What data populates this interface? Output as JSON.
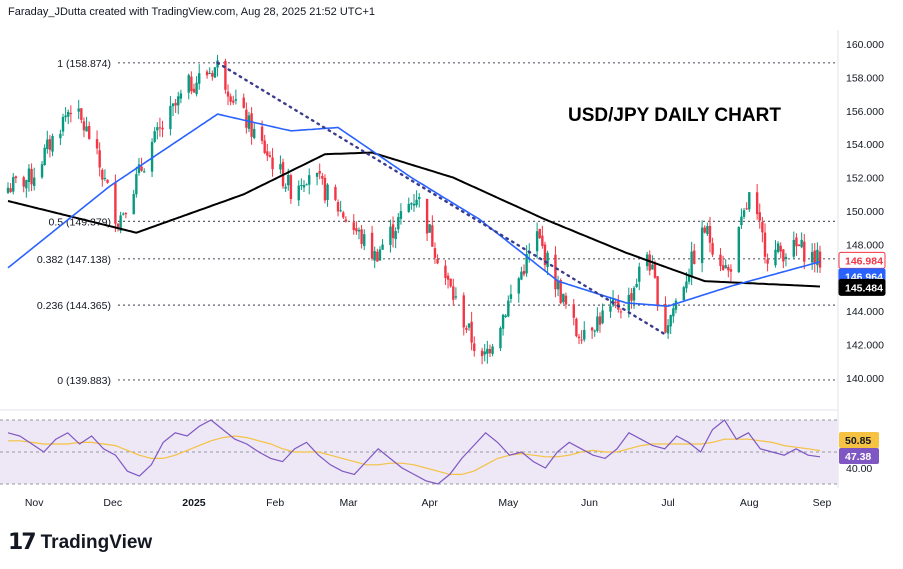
{
  "header": {
    "text": "Faraday_JDutta created with TradingView.com, Aug 28, 2025 21:52 UTC+1"
  },
  "footer": {
    "logo_text": "TradingView",
    "logo_mark": "17"
  },
  "colors": {
    "up": "#089981",
    "down": "#f23645",
    "sma50": "#2962ff",
    "sma100": "#000000",
    "rsi": "#7e57c2",
    "rsi_ma": "#f5c242",
    "rsi_band": "#ede7f6",
    "fib": "#787b86"
  },
  "chart_data": [
    {
      "type": "candlestick",
      "title": "USD/JPY DAILY CHART",
      "instrument": "USD/JPY",
      "timeframe": "Daily",
      "x_tick_labels": [
        "Nov",
        "Dec",
        "2025",
        "Feb",
        "Mar",
        "Apr",
        "May",
        "Jun",
        "Jul",
        "Aug",
        "Sep"
      ],
      "y_tick_labels": [
        "140.000",
        "142.000",
        "144.000",
        "146.000",
        "148.000",
        "150.000",
        "152.000",
        "154.000",
        "156.000",
        "158.000",
        "160.000"
      ],
      "ylim": [
        139.0,
        160.5
      ],
      "price_scale_side": "right",
      "grid": false,
      "fibonacci_levels": [
        {
          "label": "1 (158.874)",
          "value": 158.874
        },
        {
          "label": "0.5 (149.379)",
          "value": 149.379
        },
        {
          "label": "0.382 (147.138)",
          "value": 147.138
        },
        {
          "label": "0.236 (144.365)",
          "value": 144.365
        },
        {
          "label": "0 (139.883)",
          "value": 139.883
        }
      ],
      "price_tags": [
        {
          "label": "146.984",
          "value": 146.984,
          "color": "#f23645",
          "series": "Close"
        },
        {
          "label": "146.964",
          "value": 146.964,
          "color": "#2962ff",
          "series": "SMA 50"
        },
        {
          "label": "145.484",
          "value": 145.484,
          "color": "#000000",
          "series": "SMA 100"
        }
      ],
      "trendline": {
        "style": "dotted",
        "color": "#3c3c8c",
        "start": {
          "date": "2025-01-10",
          "value": 158.874
        },
        "end": {
          "date": "2025-06-30",
          "value": 142.6
        }
      },
      "series_anchors": {
        "close": [
          [
            "2024-10-22",
            151.4
          ],
          [
            "2024-10-31",
            152.0
          ],
          [
            "2024-11-15",
            156.3
          ],
          [
            "2024-11-22",
            154.5
          ],
          [
            "2024-12-03",
            149.4
          ],
          [
            "2024-12-16",
            154.0
          ],
          [
            "2024-12-30",
            157.5
          ],
          [
            "2025-01-10",
            158.7
          ],
          [
            "2025-01-20",
            155.6
          ],
          [
            "2025-02-07",
            151.3
          ],
          [
            "2025-02-14",
            152.4
          ],
          [
            "2025-02-28",
            149.6
          ],
          [
            "2025-03-11",
            147.3
          ],
          [
            "2025-03-27",
            151.0
          ],
          [
            "2025-04-07",
            146.0
          ],
          [
            "2025-04-21",
            140.9
          ],
          [
            "2025-05-12",
            148.5
          ],
          [
            "2025-05-27",
            142.7
          ],
          [
            "2025-06-16",
            144.7
          ],
          [
            "2025-06-23",
            147.5
          ],
          [
            "2025-06-30",
            143.0
          ],
          [
            "2025-07-15",
            148.9
          ],
          [
            "2025-07-24",
            146.3
          ],
          [
            "2025-08-01",
            150.8
          ],
          [
            "2025-08-08",
            147.4
          ],
          [
            "2025-08-20",
            147.8
          ],
          [
            "2025-08-28",
            146.98
          ]
        ],
        "sma50": [
          [
            "2024-10-22",
            146.6
          ],
          [
            "2024-11-30",
            151.5
          ],
          [
            "2025-01-10",
            155.8
          ],
          [
            "2025-02-07",
            154.8
          ],
          [
            "2025-02-25",
            155.0
          ],
          [
            "2025-03-25",
            152.0
          ],
          [
            "2025-04-20",
            149.5
          ],
          [
            "2025-05-20",
            145.8
          ],
          [
            "2025-06-15",
            144.5
          ],
          [
            "2025-07-01",
            144.3
          ],
          [
            "2025-07-25",
            145.5
          ],
          [
            "2025-08-28",
            146.96
          ]
        ],
        "sma100": [
          [
            "2024-10-22",
            150.6
          ],
          [
            "2024-12-10",
            148.7
          ],
          [
            "2025-01-20",
            151.0
          ],
          [
            "2025-02-20",
            153.4
          ],
          [
            "2025-03-10",
            153.5
          ],
          [
            "2025-04-10",
            152.0
          ],
          [
            "2025-05-15",
            149.5
          ],
          [
            "2025-06-15",
            147.5
          ],
          [
            "2025-07-15",
            145.8
          ],
          [
            "2025-08-28",
            145.48
          ]
        ]
      }
    },
    {
      "type": "line",
      "indicator": "RSI",
      "x_tick_labels": [
        "Nov",
        "Dec",
        "2025",
        "Feb",
        "Mar",
        "Apr",
        "May",
        "Jun",
        "Jul",
        "Aug",
        "Sep"
      ],
      "y_tick_labels": [
        "40.00"
      ],
      "band": [
        30,
        70
      ],
      "ylim": [
        28,
        75
      ],
      "value_tags": [
        {
          "label": "50.85",
          "value": 50.85,
          "color": "#f5c242",
          "series": "RSI-based MA"
        },
        {
          "label": "47.38",
          "value": 47.38,
          "color": "#7e57c2",
          "series": "RSI"
        }
      ],
      "series": [
        {
          "name": "RSI",
          "values": [
            62,
            60,
            55,
            50,
            58,
            62,
            55,
            60,
            52,
            48,
            38,
            35,
            42,
            56,
            62,
            60,
            66,
            70,
            64,
            58,
            55,
            50,
            46,
            44,
            52,
            56,
            48,
            42,
            38,
            36,
            44,
            52,
            46,
            40,
            36,
            32,
            30,
            36,
            46,
            54,
            62,
            56,
            48,
            50,
            44,
            40,
            50,
            56,
            52,
            48,
            46,
            52,
            62,
            58,
            54,
            52,
            60,
            56,
            50,
            64,
            70,
            58,
            62,
            52,
            50,
            48,
            52,
            48,
            47
          ]
        },
        {
          "name": "RSI-based MA",
          "values": [
            57,
            57,
            56,
            55,
            55,
            55,
            56,
            56,
            55,
            54,
            51,
            48,
            46,
            46,
            48,
            51,
            54,
            57,
            59,
            60,
            59,
            57,
            55,
            52,
            50,
            50,
            50,
            48,
            46,
            44,
            42,
            42,
            43,
            43,
            42,
            40,
            38,
            36,
            36,
            38,
            42,
            46,
            48,
            49,
            48,
            47,
            47,
            48,
            50,
            51,
            50,
            50,
            52,
            54,
            55,
            55,
            55,
            55,
            55,
            56,
            58,
            58,
            58,
            57,
            56,
            54,
            53,
            52,
            50.85
          ]
        }
      ]
    }
  ]
}
